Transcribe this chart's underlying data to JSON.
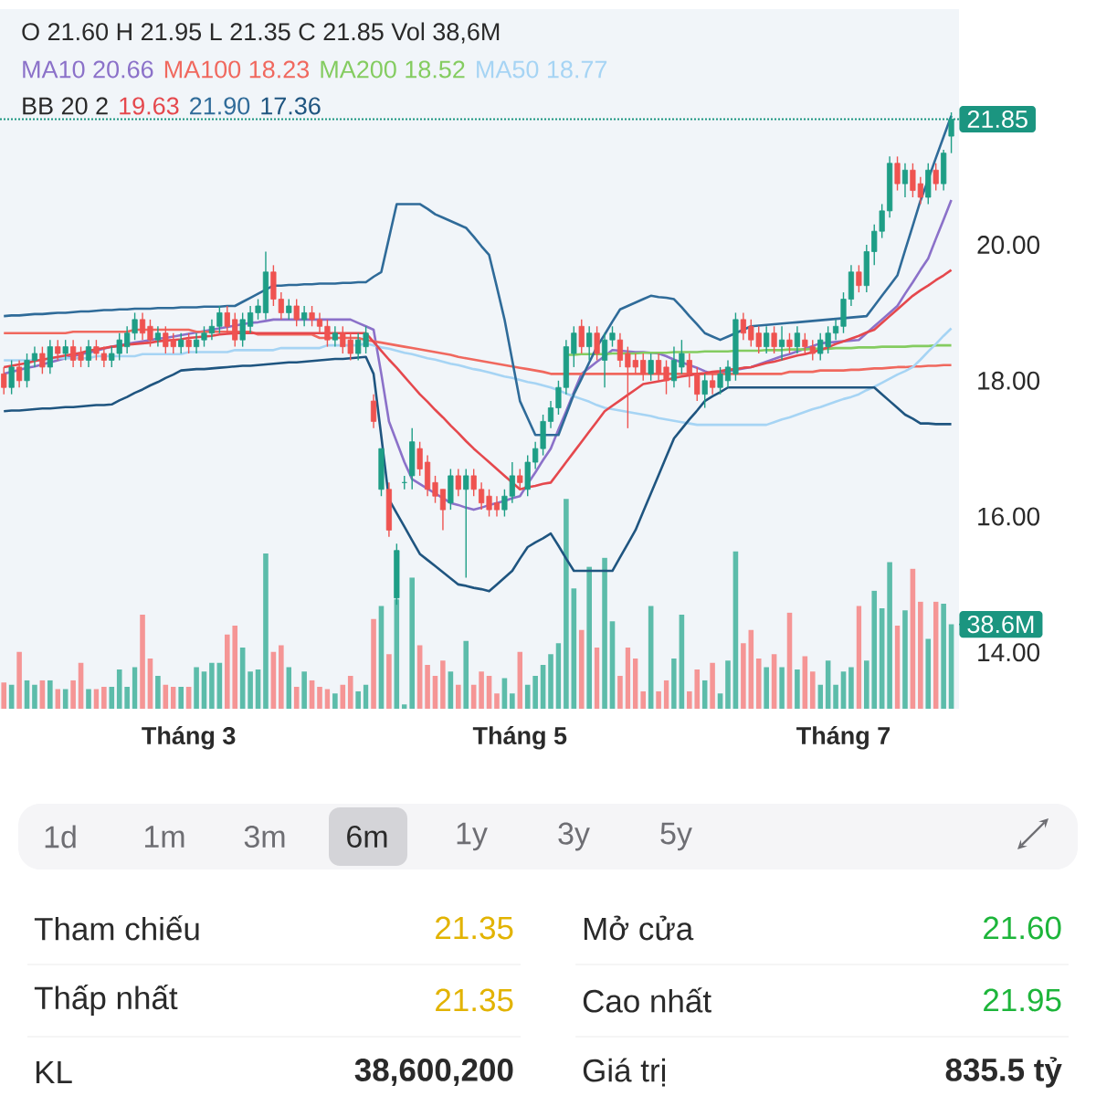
{
  "chart_data": {
    "type": "candlestick",
    "categories": [
      null,
      null,
      null,
      null,
      null,
      null,
      null,
      null,
      null,
      null,
      null,
      null,
      null,
      null,
      null,
      null,
      null,
      null,
      null,
      null,
      null,
      null,
      null,
      null,
      "Tháng 3",
      null,
      null,
      null,
      null,
      null,
      null,
      null,
      null,
      null,
      null,
      null,
      null,
      null,
      null,
      null,
      null,
      null,
      null,
      null,
      null,
      null,
      null,
      null,
      null,
      null,
      null,
      null,
      null,
      null,
      null,
      null,
      null,
      null,
      null,
      null,
      null,
      null,
      null,
      null,
      null,
      null,
      null,
      "Tháng 5",
      null,
      null,
      null,
      null,
      null,
      null,
      null,
      null,
      null,
      null,
      null,
      null,
      null,
      null,
      null,
      null,
      null,
      null,
      null,
      null,
      null,
      null,
      null,
      null,
      null,
      null,
      null,
      null,
      null,
      null,
      null,
      null,
      null,
      null,
      null,
      null,
      null,
      null,
      null,
      null,
      null,
      "Tháng 7",
      null,
      null,
      null,
      null,
      null,
      null,
      null,
      null,
      null,
      null,
      null,
      null,
      null,
      null
    ],
    "ohlc": [
      [
        18.1,
        18.2,
        17.8,
        17.9
      ],
      [
        17.9,
        18.3,
        17.8,
        18.2
      ],
      [
        18.2,
        18.3,
        17.9,
        18.0
      ],
      [
        18.0,
        18.4,
        17.9,
        18.3
      ],
      [
        18.3,
        18.5,
        18.2,
        18.4
      ],
      [
        18.4,
        18.5,
        18.1,
        18.2
      ],
      [
        18.2,
        18.6,
        18.1,
        18.5
      ],
      [
        18.5,
        18.6,
        18.3,
        18.4
      ],
      [
        18.4,
        18.6,
        18.3,
        18.5
      ],
      [
        18.5,
        18.6,
        18.2,
        18.3
      ],
      [
        18.4,
        18.5,
        18.2,
        18.3
      ],
      [
        18.3,
        18.6,
        18.2,
        18.5
      ],
      [
        18.5,
        18.6,
        18.3,
        18.4
      ],
      [
        18.4,
        18.5,
        18.2,
        18.3
      ],
      [
        18.3,
        18.5,
        18.2,
        18.4
      ],
      [
        18.4,
        18.7,
        18.3,
        18.6
      ],
      [
        18.5,
        18.8,
        18.4,
        18.7
      ],
      [
        18.7,
        19.0,
        18.6,
        18.9
      ],
      [
        18.9,
        19.0,
        18.6,
        18.7
      ],
      [
        18.8,
        18.9,
        18.5,
        18.6
      ],
      [
        18.6,
        18.8,
        18.5,
        18.7
      ],
      [
        18.7,
        18.8,
        18.4,
        18.5
      ],
      [
        18.6,
        18.7,
        18.4,
        18.5
      ],
      [
        18.5,
        18.7,
        18.4,
        18.6
      ],
      [
        18.6,
        18.7,
        18.4,
        18.5
      ],
      [
        18.5,
        18.7,
        18.4,
        18.6
      ],
      [
        18.6,
        18.8,
        18.5,
        18.7
      ],
      [
        18.7,
        18.9,
        18.6,
        18.8
      ],
      [
        18.8,
        19.1,
        18.7,
        19.0
      ],
      [
        19.0,
        19.1,
        18.7,
        18.8
      ],
      [
        18.9,
        19.0,
        18.5,
        18.6
      ],
      [
        18.6,
        19.0,
        18.5,
        18.9
      ],
      [
        18.8,
        19.1,
        18.7,
        19.0
      ],
      [
        19.0,
        19.2,
        18.9,
        19.1
      ],
      [
        19.0,
        19.9,
        18.9,
        19.6
      ],
      [
        19.6,
        19.7,
        19.1,
        19.2
      ],
      [
        19.2,
        19.3,
        18.9,
        19.0
      ],
      [
        19.0,
        19.2,
        18.9,
        19.1
      ],
      [
        19.1,
        19.2,
        18.8,
        18.9
      ],
      [
        18.9,
        19.1,
        18.8,
        19.0
      ],
      [
        19.0,
        19.1,
        18.8,
        18.9
      ],
      [
        18.9,
        19.0,
        18.7,
        18.8
      ],
      [
        18.8,
        18.9,
        18.5,
        18.6
      ],
      [
        18.6,
        18.8,
        18.5,
        18.7
      ],
      [
        18.7,
        18.8,
        18.4,
        18.5
      ],
      [
        18.6,
        18.7,
        18.3,
        18.4
      ],
      [
        18.4,
        18.7,
        18.3,
        18.6
      ],
      [
        18.5,
        18.8,
        18.4,
        18.7
      ],
      [
        17.7,
        17.8,
        17.3,
        17.4
      ],
      [
        16.4,
        17.0,
        16.3,
        17.0
      ],
      [
        16.4,
        16.5,
        15.7,
        15.8
      ],
      [
        14.8,
        15.6,
        14.7,
        15.5
      ],
      [
        16.5,
        16.6,
        16.4,
        16.5
      ],
      [
        16.6,
        17.3,
        16.4,
        17.1
      ],
      [
        17.0,
        17.1,
        16.6,
        16.7
      ],
      [
        16.8,
        16.9,
        16.3,
        16.4
      ],
      [
        16.5,
        16.6,
        16.2,
        16.3
      ],
      [
        16.4,
        16.4,
        15.8,
        16.1
      ],
      [
        16.2,
        16.7,
        16.1,
        16.6
      ],
      [
        16.6,
        16.7,
        16.3,
        16.4
      ],
      [
        16.4,
        16.7,
        15.1,
        16.6
      ],
      [
        16.6,
        16.7,
        16.3,
        16.4
      ],
      [
        16.4,
        16.5,
        16.1,
        16.2
      ],
      [
        16.3,
        16.4,
        16.0,
        16.1
      ],
      [
        16.2,
        16.3,
        16.0,
        16.1
      ],
      [
        16.1,
        16.4,
        16.0,
        16.3
      ],
      [
        16.3,
        16.8,
        16.2,
        16.6
      ],
      [
        16.6,
        16.7,
        16.4,
        16.5
      ],
      [
        16.4,
        16.9,
        16.3,
        16.8
      ],
      [
        16.8,
        17.1,
        16.7,
        17.0
      ],
      [
        17.0,
        17.5,
        16.9,
        17.4
      ],
      [
        17.4,
        17.7,
        17.3,
        17.6
      ],
      [
        17.6,
        18.0,
        17.5,
        17.9
      ],
      [
        17.9,
        18.6,
        17.8,
        18.5
      ],
      [
        18.4,
        18.8,
        18.2,
        18.7
      ],
      [
        18.8,
        18.9,
        18.4,
        18.5
      ],
      [
        18.5,
        18.8,
        18.3,
        18.7
      ],
      [
        18.7,
        18.8,
        18.3,
        18.4
      ],
      [
        18.3,
        18.7,
        17.9,
        18.6
      ],
      [
        18.6,
        18.8,
        18.5,
        18.7
      ],
      [
        18.6,
        18.7,
        18.2,
        18.3
      ],
      [
        18.4,
        18.5,
        17.3,
        18.2
      ],
      [
        18.3,
        18.4,
        18.1,
        18.2
      ],
      [
        18.3,
        18.4,
        18.0,
        18.1
      ],
      [
        18.1,
        18.4,
        18.0,
        18.3
      ],
      [
        18.3,
        18.4,
        18.0,
        18.1
      ],
      [
        18.2,
        18.3,
        17.8,
        18.0
      ],
      [
        18.0,
        18.5,
        17.9,
        18.3
      ],
      [
        18.2,
        18.6,
        18.1,
        18.4
      ],
      [
        18.3,
        18.4,
        17.9,
        18.1
      ],
      [
        18.1,
        18.2,
        17.7,
        17.8
      ],
      [
        17.8,
        18.1,
        17.6,
        18.0
      ],
      [
        18.0,
        18.1,
        17.8,
        17.9
      ],
      [
        17.9,
        18.2,
        17.8,
        18.1
      ],
      [
        18.0,
        18.3,
        17.9,
        18.2
      ],
      [
        18.1,
        19.0,
        18.0,
        18.9
      ],
      [
        18.9,
        19.0,
        18.6,
        18.7
      ],
      [
        18.8,
        18.9,
        18.5,
        18.6
      ],
      [
        18.7,
        18.8,
        18.4,
        18.5
      ],
      [
        18.5,
        18.8,
        18.4,
        18.7
      ],
      [
        18.7,
        18.8,
        18.4,
        18.5
      ],
      [
        18.5,
        18.8,
        18.3,
        18.6
      ],
      [
        18.6,
        18.7,
        18.4,
        18.5
      ],
      [
        18.5,
        18.8,
        18.4,
        18.7
      ],
      [
        18.6,
        18.7,
        18.4,
        18.5
      ],
      [
        18.5,
        18.6,
        18.3,
        18.4
      ],
      [
        18.4,
        18.7,
        18.3,
        18.6
      ],
      [
        18.5,
        18.8,
        18.4,
        18.7
      ],
      [
        18.7,
        18.9,
        18.6,
        18.8
      ],
      [
        18.8,
        19.3,
        18.7,
        19.2
      ],
      [
        19.2,
        19.7,
        19.1,
        19.6
      ],
      [
        19.6,
        19.7,
        19.3,
        19.4
      ],
      [
        19.4,
        20.0,
        19.3,
        19.9
      ],
      [
        19.9,
        20.3,
        19.7,
        20.2
      ],
      [
        20.2,
        20.6,
        20.1,
        20.5
      ],
      [
        20.5,
        21.3,
        20.4,
        21.2
      ],
      [
        21.2,
        21.3,
        20.8,
        20.9
      ],
      [
        20.9,
        21.2,
        20.7,
        21.1
      ],
      [
        21.1,
        21.2,
        20.7,
        20.8
      ],
      [
        20.9,
        21.0,
        20.6,
        20.7
      ],
      [
        20.7,
        21.2,
        20.6,
        21.1
      ],
      [
        21.1,
        21.2,
        20.8,
        20.9
      ],
      [
        20.9,
        21.4,
        20.8,
        21.35
      ],
      [
        21.6,
        21.95,
        21.35,
        21.85
      ]
    ],
    "ylim": [
      13.17,
      23.47
    ],
    "yticks": [
      {
        "value": 14,
        "label": "14.00"
      },
      {
        "value": 16,
        "label": "16.00"
      },
      {
        "value": 18,
        "label": "18.00"
      },
      {
        "value": 20,
        "label": "20.00"
      }
    ],
    "y2lim": [
      0,
      320
    ],
    "y2ticks": [
      {
        "value": 38.6,
        "label": "38.6M"
      }
    ],
    "legend": "top left",
    "series": [
      {
        "name": "MA10 20.66",
        "type": "line",
        "color": "#8b71c9",
        "values": [
          18.1,
          18.13,
          18.16,
          18.19,
          18.21,
          18.24,
          18.27,
          18.3,
          18.33,
          18.36,
          18.39,
          18.41,
          18.44,
          18.47,
          18.5,
          18.52,
          18.54,
          18.56,
          18.58,
          18.6,
          18.62,
          18.63,
          18.65,
          18.67,
          18.69,
          18.71,
          18.73,
          18.75,
          18.77,
          18.79,
          18.81,
          18.83,
          18.85,
          18.86,
          18.88,
          18.9,
          18.9,
          18.9,
          18.9,
          18.9,
          18.9,
          18.9,
          18.9,
          18.9,
          18.9,
          18.9,
          18.85,
          18.8,
          18.75,
          18.1,
          17.4,
          17.1,
          16.8,
          16.55,
          16.48,
          16.41,
          16.34,
          16.27,
          16.2,
          16.17,
          16.13,
          16.1,
          16.13,
          16.17,
          16.2,
          16.23,
          16.27,
          16.3,
          16.48,
          16.65,
          16.83,
          17.0,
          17.28,
          17.55,
          17.83,
          18.1,
          18.19,
          18.28,
          18.36,
          18.45,
          18.44,
          18.43,
          18.42,
          18.42,
          18.41,
          18.4,
          18.36,
          18.31,
          18.27,
          18.23,
          18.19,
          18.14,
          18.1,
          18.12,
          18.14,
          18.16,
          18.18,
          18.2,
          18.24,
          18.28,
          18.32,
          18.36,
          18.39,
          18.43,
          18.47,
          18.51,
          18.55,
          18.56,
          18.57,
          18.58,
          18.59,
          18.6,
          18.7,
          18.8,
          18.9,
          19.0,
          19.1,
          19.28,
          19.45,
          19.63,
          19.8,
          20.09,
          20.37,
          20.66
        ]
      },
      {
        "name": "MA100 18.23",
        "type": "line",
        "color": "#f0685e",
        "values": [
          18.7,
          18.7,
          18.7,
          18.7,
          18.7,
          18.7,
          18.7,
          18.7,
          18.7,
          18.72,
          18.72,
          18.72,
          18.72,
          18.72,
          18.72,
          18.72,
          18.72,
          18.75,
          18.75,
          18.75,
          18.75,
          18.75,
          18.75,
          18.75,
          18.75,
          18.72,
          18.72,
          18.72,
          18.72,
          18.72,
          18.72,
          18.72,
          18.72,
          18.68,
          18.68,
          18.68,
          18.68,
          18.68,
          18.68,
          18.68,
          18.68,
          18.63,
          18.63,
          18.63,
          18.63,
          18.63,
          18.63,
          18.6,
          18.58,
          18.56,
          18.54,
          18.52,
          18.5,
          18.48,
          18.46,
          18.44,
          18.42,
          18.4,
          18.38,
          18.35,
          18.33,
          18.31,
          18.29,
          18.27,
          18.25,
          18.23,
          18.21,
          18.19,
          18.17,
          18.15,
          18.13,
          18.1,
          18.1,
          18.1,
          18.1,
          18.1,
          18.1,
          18.1,
          18.1,
          18.1,
          18.1,
          18.1,
          18.1,
          18.1,
          18.1,
          18.1,
          18.1,
          18.1,
          18.1,
          18.1,
          18.1,
          18.1,
          18.1,
          18.1,
          18.1,
          18.1,
          18.1,
          18.1,
          18.1,
          18.1,
          18.1,
          18.1,
          18.13,
          18.13,
          18.13,
          18.13,
          18.15,
          18.15,
          18.15,
          18.15,
          18.16,
          18.16,
          18.17,
          18.18,
          18.18,
          18.19,
          18.2,
          18.2,
          18.21,
          18.21,
          18.22,
          18.22,
          18.23,
          18.23
        ]
      },
      {
        "name": "MA200 18.52",
        "type": "line",
        "color": "#84cc60",
        "values": [
          null,
          null,
          null,
          null,
          null,
          null,
          null,
          null,
          null,
          null,
          null,
          null,
          null,
          null,
          null,
          null,
          null,
          null,
          null,
          null,
          null,
          null,
          null,
          null,
          null,
          null,
          null,
          null,
          null,
          null,
          null,
          null,
          null,
          null,
          null,
          null,
          null,
          null,
          null,
          null,
          null,
          null,
          null,
          null,
          null,
          null,
          null,
          null,
          null,
          null,
          null,
          null,
          null,
          null,
          null,
          null,
          null,
          null,
          null,
          null,
          null,
          null,
          null,
          null,
          null,
          null,
          null,
          null,
          null,
          null,
          null,
          null,
          null,
          18.38,
          18.38,
          18.39,
          18.39,
          18.39,
          18.39,
          18.4,
          18.4,
          18.4,
          18.4,
          18.41,
          18.41,
          18.41,
          18.41,
          18.42,
          18.42,
          18.42,
          18.42,
          18.43,
          18.43,
          18.43,
          18.43,
          18.44,
          18.44,
          18.44,
          18.44,
          18.45,
          18.45,
          18.45,
          18.46,
          18.46,
          18.46,
          18.47,
          18.47,
          18.47,
          18.48,
          18.48,
          18.48,
          18.49,
          18.49,
          18.49,
          18.5,
          18.5,
          18.5,
          18.5,
          18.51,
          18.51,
          18.51,
          18.52,
          18.52,
          18.52
        ]
      },
      {
        "name": "MA50 18.77",
        "type": "line",
        "color": "#a6d4f4",
        "values": [
          18.3,
          18.3,
          18.3,
          18.3,
          18.3,
          18.3,
          18.33,
          18.33,
          18.33,
          18.33,
          18.33,
          18.33,
          18.36,
          18.36,
          18.36,
          18.36,
          18.36,
          18.36,
          18.39,
          18.39,
          18.39,
          18.39,
          18.39,
          18.39,
          18.42,
          18.42,
          18.42,
          18.42,
          18.42,
          18.42,
          18.45,
          18.45,
          18.45,
          18.45,
          18.45,
          18.45,
          18.48,
          18.48,
          18.48,
          18.48,
          18.48,
          18.48,
          18.52,
          18.52,
          18.52,
          18.52,
          18.52,
          18.55,
          18.52,
          18.49,
          18.47,
          18.44,
          18.41,
          18.39,
          18.36,
          18.33,
          18.31,
          18.28,
          18.25,
          18.23,
          18.2,
          18.17,
          18.15,
          18.12,
          18.09,
          18.06,
          18.04,
          18.01,
          17.98,
          17.96,
          17.93,
          17.9,
          17.86,
          17.81,
          17.77,
          17.73,
          17.69,
          17.64,
          17.6,
          17.58,
          17.56,
          17.54,
          17.52,
          17.5,
          17.48,
          17.45,
          17.43,
          17.41,
          17.39,
          17.37,
          17.35,
          17.35,
          17.35,
          17.35,
          17.35,
          17.35,
          17.35,
          17.35,
          17.35,
          17.35,
          17.39,
          17.43,
          17.46,
          17.5,
          17.54,
          17.58,
          17.61,
          17.65,
          17.69,
          17.73,
          17.76,
          17.8,
          17.86,
          17.91,
          17.97,
          18.03,
          18.09,
          18.14,
          18.2,
          18.31,
          18.43,
          18.54,
          18.66,
          18.77
        ]
      },
      {
        "name": "19.63",
        "type": "line",
        "color": "#e5484d",
        "values": [
          18.2,
          18.22,
          18.24,
          18.26,
          18.29,
          18.31,
          18.33,
          18.35,
          18.37,
          18.39,
          18.41,
          18.44,
          18.46,
          18.48,
          18.5,
          18.51,
          18.53,
          18.54,
          18.55,
          18.56,
          18.58,
          18.59,
          18.6,
          18.61,
          18.63,
          18.64,
          18.65,
          18.66,
          18.68,
          18.69,
          18.7,
          18.7,
          18.7,
          18.7,
          18.7,
          18.7,
          18.7,
          18.7,
          18.7,
          18.7,
          18.7,
          18.7,
          18.7,
          18.7,
          18.7,
          18.7,
          18.7,
          18.7,
          18.57,
          18.44,
          18.31,
          18.19,
          18.06,
          17.93,
          17.8,
          17.69,
          17.57,
          17.46,
          17.34,
          17.23,
          17.11,
          17.0,
          16.9,
          16.8,
          16.7,
          16.6,
          16.5,
          16.4,
          16.43,
          16.45,
          16.48,
          16.5,
          16.65,
          16.8,
          16.95,
          17.1,
          17.25,
          17.4,
          17.55,
          17.63,
          17.71,
          17.79,
          17.87,
          17.95,
          17.97,
          17.99,
          18.01,
          18.04,
          18.06,
          18.08,
          18.1,
          18.11,
          18.13,
          18.14,
          18.16,
          18.17,
          18.19,
          18.2,
          18.23,
          18.26,
          18.28,
          18.31,
          18.34,
          18.37,
          18.39,
          18.42,
          18.45,
          18.49,
          18.54,
          18.58,
          18.62,
          18.66,
          18.71,
          18.75,
          18.85,
          18.95,
          19.05,
          19.15,
          19.25,
          19.33,
          19.4,
          19.48,
          19.55,
          19.63
        ]
      },
      {
        "name": "21.90",
        "type": "line",
        "color": "#2f6b99",
        "values": [
          18.95,
          18.96,
          18.96,
          18.97,
          18.98,
          18.98,
          18.99,
          19.0,
          19.0,
          19.01,
          19.02,
          19.02,
          19.03,
          19.04,
          19.04,
          19.05,
          19.05,
          19.06,
          19.06,
          19.06,
          19.07,
          19.07,
          19.07,
          19.08,
          19.08,
          19.08,
          19.09,
          19.09,
          19.09,
          19.1,
          19.1,
          19.16,
          19.22,
          19.28,
          19.34,
          19.4,
          19.4,
          19.41,
          19.41,
          19.42,
          19.42,
          19.43,
          19.43,
          19.43,
          19.44,
          19.44,
          19.45,
          19.45,
          19.53,
          19.6,
          20.1,
          20.6,
          20.6,
          20.6,
          20.6,
          20.53,
          20.45,
          20.4,
          20.35,
          20.3,
          20.25,
          20.12,
          19.98,
          19.85,
          19.38,
          18.9,
          18.3,
          17.7,
          17.45,
          17.2,
          17.2,
          17.2,
          17.2,
          17.5,
          17.8,
          18.03,
          18.27,
          18.5,
          18.68,
          18.87,
          19.05,
          19.1,
          19.15,
          19.2,
          19.25,
          19.23,
          19.22,
          19.2,
          19.08,
          18.95,
          18.83,
          18.7,
          18.65,
          18.6,
          18.65,
          18.7,
          18.75,
          18.8,
          18.81,
          18.82,
          18.83,
          18.84,
          18.85,
          18.86,
          18.87,
          18.88,
          18.89,
          18.9,
          18.91,
          18.92,
          18.93,
          18.94,
          18.95,
          19.1,
          19.25,
          19.4,
          19.55,
          19.92,
          20.28,
          20.65,
          20.96,
          21.28,
          21.59,
          21.9
        ]
      },
      {
        "name": "17.36",
        "type": "line",
        "color": "#1f5580",
        "values": [
          17.55,
          17.56,
          17.56,
          17.57,
          17.58,
          17.59,
          17.59,
          17.6,
          17.61,
          17.61,
          17.62,
          17.63,
          17.64,
          17.64,
          17.65,
          17.71,
          17.76,
          17.82,
          17.87,
          17.93,
          17.98,
          18.04,
          18.09,
          18.15,
          18.16,
          18.17,
          18.17,
          18.18,
          18.19,
          18.2,
          18.21,
          18.22,
          18.22,
          18.23,
          18.24,
          18.25,
          18.26,
          18.27,
          18.27,
          18.28,
          18.29,
          18.3,
          18.31,
          18.32,
          18.32,
          18.33,
          18.34,
          18.35,
          18.1,
          17.18,
          16.25,
          16.05,
          15.85,
          15.65,
          15.45,
          15.36,
          15.27,
          15.18,
          15.09,
          15.0,
          14.98,
          14.95,
          14.93,
          14.9,
          15.0,
          15.1,
          15.2,
          15.38,
          15.55,
          15.62,
          15.68,
          15.75,
          15.57,
          15.38,
          15.2,
          15.2,
          15.2,
          15.2,
          15.2,
          15.2,
          15.4,
          15.6,
          15.8,
          16.07,
          16.34,
          16.61,
          16.88,
          17.15,
          17.29,
          17.43,
          17.56,
          17.7,
          17.77,
          17.83,
          17.9,
          17.9,
          17.9,
          17.9,
          17.9,
          17.9,
          17.9,
          17.9,
          17.9,
          17.9,
          17.9,
          17.9,
          17.9,
          17.9,
          17.9,
          17.9,
          17.9,
          17.9,
          17.9,
          17.9,
          17.8,
          17.7,
          17.6,
          17.5,
          17.44,
          17.37,
          17.37,
          17.36,
          17.36,
          17.36
        ]
      },
      {
        "type": "bar",
        "axis": "y2",
        "values": [
          12,
          11,
          26,
          13,
          11,
          13,
          13,
          9,
          9,
          13,
          21,
          9,
          9,
          10,
          10,
          18,
          10,
          19,
          43,
          23,
          15,
          11,
          10,
          10,
          10,
          19,
          17,
          21,
          21,
          34,
          38,
          28,
          17,
          18,
          71,
          26,
          29,
          19,
          10,
          17,
          13,
          10,
          9,
          7,
          11,
          15,
          8,
          11,
          41,
          47,
          25,
          50,
          2,
          60,
          29,
          20,
          15,
          22,
          17,
          11,
          31,
          11,
          17,
          15,
          7,
          14,
          7,
          26,
          11,
          15,
          20,
          25,
          30,
          96,
          55,
          36,
          65,
          28,
          69,
          40,
          15,
          28,
          23,
          8,
          47,
          8,
          13,
          23,
          43,
          8,
          18,
          13,
          21,
          7,
          22,
          72,
          30,
          36,
          23,
          19,
          25,
          19,
          44,
          18,
          24,
          17,
          11,
          22,
          11,
          17,
          19,
          47,
          22,
          54,
          46,
          67,
          38,
          45,
          64,
          49,
          32,
          49,
          48,
          38.6
        ],
        "colors": [
          "#f59595",
          "#5cbcaa",
          "#f59595",
          "#5cbcaa",
          "#5cbcaa",
          "#f59595",
          "#5cbcaa",
          "#f59595",
          "#5cbcaa",
          "#f59595",
          "#f59595",
          "#5cbcaa",
          "#f59595",
          "#f59595",
          "#5cbcaa",
          "#5cbcaa",
          "#5cbcaa",
          "#5cbcaa",
          "#f59595",
          "#f59595",
          "#5cbcaa",
          "#f59595",
          "#f59595",
          "#5cbcaa",
          "#f59595",
          "#5cbcaa",
          "#5cbcaa",
          "#5cbcaa",
          "#5cbcaa",
          "#f59595",
          "#f59595",
          "#5cbcaa",
          "#5cbcaa",
          "#5cbcaa",
          "#5cbcaa",
          "#f59595",
          "#f59595",
          "#5cbcaa",
          "#f59595",
          "#5cbcaa",
          "#f59595",
          "#f59595",
          "#f59595",
          "#5cbcaa",
          "#f59595",
          "#f59595",
          "#5cbcaa",
          "#5cbcaa",
          "#f59595",
          "#5cbcaa",
          "#f59595",
          "#5cbcaa",
          "#5cbcaa",
          "#5cbcaa",
          "#f59595",
          "#f59595",
          "#f59595",
          "#f59595",
          "#5cbcaa",
          "#f59595",
          "#5cbcaa",
          "#f59595",
          "#f59595",
          "#f59595",
          "#f59595",
          "#5cbcaa",
          "#5cbcaa",
          "#f59595",
          "#5cbcaa",
          "#5cbcaa",
          "#5cbcaa",
          "#5cbcaa",
          "#5cbcaa",
          "#5cbcaa",
          "#5cbcaa",
          "#f59595",
          "#5cbcaa",
          "#f59595",
          "#5cbcaa",
          "#5cbcaa",
          "#f59595",
          "#f59595",
          "#f59595",
          "#f59595",
          "#5cbcaa",
          "#f59595",
          "#f59595",
          "#5cbcaa",
          "#5cbcaa",
          "#f59595",
          "#f59595",
          "#5cbcaa",
          "#f59595",
          "#5cbcaa",
          "#5cbcaa",
          "#5cbcaa",
          "#f59595",
          "#f59595",
          "#f59595",
          "#5cbcaa",
          "#f59595",
          "#5cbcaa",
          "#f59595",
          "#5cbcaa",
          "#f59595",
          "#f59595",
          "#5cbcaa",
          "#5cbcaa",
          "#5cbcaa",
          "#5cbcaa",
          "#5cbcaa",
          "#f59595",
          "#5cbcaa",
          "#5cbcaa",
          "#5cbcaa",
          "#5cbcaa",
          "#f59595",
          "#5cbcaa",
          "#f59595",
          "#f59595",
          "#5cbcaa",
          "#f59595",
          "#5cbcaa",
          "#5cbcaa"
        ]
      }
    ],
    "ref_lines": [
      {
        "axis": "y",
        "value": 21.85,
        "label": "21.85",
        "color": "#1b9580",
        "line_style": "dotted"
      }
    ],
    "annotations": [
      "O 21.60 H 21.95 L 21.35 C 21.85 Vol 38,6M",
      "BB 20 2",
      "1d",
      "1m",
      "3m",
      "6m",
      "1y",
      "3y",
      "5y",
      "Tham chiếu",
      "21.35",
      "Mở cửa",
      "21.60",
      "Thấp nhất",
      "21.35",
      "Cao nhất",
      "21.95",
      "KL",
      "38,600,200",
      "Giá trị",
      "835.5 tỷ"
    ]
  }
}
